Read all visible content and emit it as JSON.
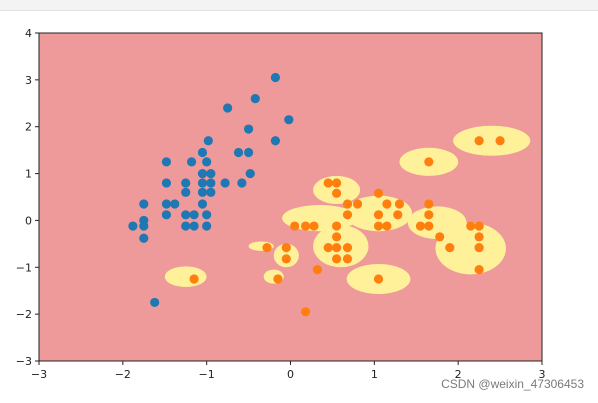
{
  "watermark": "CSDN @weixin_47306453",
  "colors": {
    "background_region": "#ee9a9a",
    "decision_region": "#fef19a",
    "class0": "#1f77b4",
    "class1": "#ff7f0e",
    "axis": "#222222"
  },
  "chart_data": {
    "type": "scatter",
    "title": "",
    "xlabel": "",
    "ylabel": "",
    "xlim": [
      -3,
      3
    ],
    "ylim": [
      -3,
      4
    ],
    "xticks": [
      -3,
      -2,
      -1,
      0,
      1,
      2,
      3
    ],
    "yticks": [
      -3,
      -2,
      -1,
      0,
      1,
      2,
      3,
      4
    ],
    "xtick_labels": [
      "−3",
      "−2",
      "−1",
      "0",
      "1",
      "2",
      "3"
    ],
    "ytick_labels": [
      "−3",
      "−2",
      "−1",
      "0",
      "1",
      "2",
      "3",
      "4"
    ],
    "grid": false,
    "legend": "none",
    "regions": [
      {
        "cx": 2.4,
        "cy": 1.7,
        "rx": 0.46,
        "ry": 0.32
      },
      {
        "cx": 1.65,
        "cy": 1.25,
        "rx": 0.35,
        "ry": 0.3
      },
      {
        "cx": 0.55,
        "cy": 0.65,
        "rx": 0.28,
        "ry": 0.3
      },
      {
        "cx": 0.35,
        "cy": 0.05,
        "rx": 0.45,
        "ry": 0.28
      },
      {
        "cx": 0.6,
        "cy": -0.55,
        "rx": 0.33,
        "ry": 0.45
      },
      {
        "cx": 1.05,
        "cy": 0.15,
        "rx": 0.4,
        "ry": 0.38
      },
      {
        "cx": 1.75,
        "cy": -0.05,
        "rx": 0.35,
        "ry": 0.35
      },
      {
        "cx": 2.15,
        "cy": -0.6,
        "rx": 0.42,
        "ry": 0.55
      },
      {
        "cx": 1.05,
        "cy": -1.25,
        "rx": 0.38,
        "ry": 0.32
      },
      {
        "cx": -0.05,
        "cy": -0.75,
        "rx": 0.15,
        "ry": 0.25
      },
      {
        "cx": -0.35,
        "cy": -0.55,
        "rx": 0.15,
        "ry": 0.1
      },
      {
        "cx": -0.2,
        "cy": -1.2,
        "rx": 0.12,
        "ry": 0.15
      },
      {
        "cx": -1.25,
        "cy": -1.2,
        "rx": 0.25,
        "ry": 0.22
      }
    ],
    "series": [
      {
        "points": [
          [
            -0.18,
            3.05
          ],
          [
            -0.42,
            2.6
          ],
          [
            -0.75,
            2.4
          ],
          [
            -0.02,
            2.15
          ],
          [
            -0.5,
            1.95
          ],
          [
            -0.18,
            1.7
          ],
          [
            -0.98,
            1.7
          ],
          [
            -0.5,
            1.45
          ],
          [
            -0.62,
            1.45
          ],
          [
            -1.05,
            1.45
          ],
          [
            -1.48,
            1.25
          ],
          [
            -1.18,
            1.25
          ],
          [
            -1.0,
            1.25
          ],
          [
            -0.48,
            1.0
          ],
          [
            -1.05,
            1.0
          ],
          [
            -0.95,
            1.0
          ],
          [
            -1.48,
            0.8
          ],
          [
            -1.25,
            0.8
          ],
          [
            -1.05,
            0.8
          ],
          [
            -0.95,
            0.8
          ],
          [
            -0.78,
            0.8
          ],
          [
            -0.58,
            0.8
          ],
          [
            -1.25,
            0.6
          ],
          [
            -1.05,
            0.6
          ],
          [
            -0.95,
            0.6
          ],
          [
            -1.75,
            0.35
          ],
          [
            -1.48,
            0.35
          ],
          [
            -1.38,
            0.35
          ],
          [
            -1.05,
            0.35
          ],
          [
            -1.48,
            0.12
          ],
          [
            -1.25,
            0.12
          ],
          [
            -1.15,
            0.12
          ],
          [
            -1.0,
            0.12
          ],
          [
            -1.75,
            0.0
          ],
          [
            -1.88,
            -0.12
          ],
          [
            -1.75,
            -0.12
          ],
          [
            -1.25,
            -0.12
          ],
          [
            -1.15,
            -0.12
          ],
          [
            -1.0,
            -0.12
          ],
          [
            -1.75,
            -0.38
          ],
          [
            -1.62,
            -1.75
          ]
        ]
      },
      {
        "points": [
          [
            2.25,
            1.7
          ],
          [
            2.5,
            1.7
          ],
          [
            1.65,
            1.25
          ],
          [
            0.45,
            0.8
          ],
          [
            0.55,
            0.8
          ],
          [
            0.55,
            0.58
          ],
          [
            1.05,
            0.58
          ],
          [
            0.68,
            0.35
          ],
          [
            0.8,
            0.35
          ],
          [
            1.15,
            0.35
          ],
          [
            1.3,
            0.35
          ],
          [
            1.65,
            0.35
          ],
          [
            0.68,
            0.12
          ],
          [
            1.05,
            0.12
          ],
          [
            1.28,
            0.12
          ],
          [
            1.65,
            0.12
          ],
          [
            0.05,
            -0.12
          ],
          [
            0.18,
            -0.12
          ],
          [
            0.28,
            -0.12
          ],
          [
            0.55,
            -0.12
          ],
          [
            1.05,
            -0.12
          ],
          [
            1.15,
            -0.12
          ],
          [
            1.55,
            -0.12
          ],
          [
            1.65,
            -0.12
          ],
          [
            2.15,
            -0.12
          ],
          [
            2.25,
            -0.12
          ],
          [
            2.25,
            -0.12
          ],
          [
            0.55,
            -0.35
          ],
          [
            1.78,
            -0.35
          ],
          [
            2.25,
            -0.35
          ],
          [
            -0.28,
            -0.58
          ],
          [
            -0.05,
            -0.58
          ],
          [
            0.45,
            -0.58
          ],
          [
            0.55,
            -0.58
          ],
          [
            0.68,
            -0.58
          ],
          [
            1.9,
            -0.58
          ],
          [
            2.25,
            -0.58
          ],
          [
            -0.05,
            -0.82
          ],
          [
            0.55,
            -0.82
          ],
          [
            0.68,
            -0.82
          ],
          [
            0.32,
            -1.05
          ],
          [
            2.25,
            -1.05
          ],
          [
            -1.15,
            -1.25
          ],
          [
            -0.15,
            -1.25
          ],
          [
            1.05,
            -1.25
          ],
          [
            0.18,
            -1.95
          ]
        ]
      }
    ]
  }
}
